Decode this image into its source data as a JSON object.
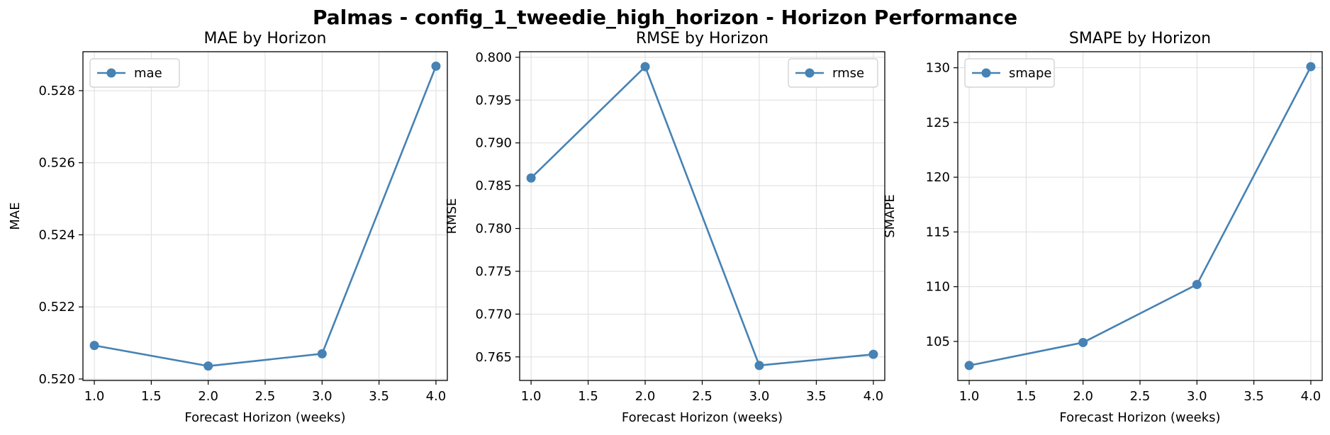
{
  "suptitle": "Palmas - config_1_tweedie_high_horizon - Horizon Performance",
  "colors": {
    "line": "#4682b4",
    "grid": "#dddddd",
    "axis": "#000000",
    "legend_border": "#cccccc"
  },
  "chart_data": [
    {
      "type": "line",
      "title": "MAE by Horizon",
      "xlabel": "Forecast Horizon (weeks)",
      "ylabel": "MAE",
      "x": [
        1.0,
        2.0,
        3.0,
        4.0
      ],
      "series": [
        {
          "name": "mae",
          "values": [
            0.52093,
            0.52036,
            0.5207,
            0.52868
          ]
        }
      ],
      "xlim": [
        0.9,
        4.1
      ],
      "ylim": [
        0.51996,
        0.52908
      ],
      "xticks": [
        "1.0",
        "1.5",
        "2.0",
        "2.5",
        "3.0",
        "3.5",
        "4.0"
      ],
      "yticks": [
        "0.520",
        "0.522",
        "0.524",
        "0.526",
        "0.528"
      ],
      "ytick_values": [
        0.52,
        0.522,
        0.524,
        0.526,
        0.528
      ],
      "legend": "upper left",
      "grid": true
    },
    {
      "type": "line",
      "title": "RMSE by Horizon",
      "xlabel": "Forecast Horizon (weeks)",
      "ylabel": "RMSE",
      "x": [
        1.0,
        2.0,
        3.0,
        4.0
      ],
      "series": [
        {
          "name": "rmse",
          "values": [
            0.7859,
            0.7989,
            0.764,
            0.7653
          ]
        }
      ],
      "xlim": [
        0.9,
        4.1
      ],
      "ylim": [
        0.76225,
        0.80065
      ],
      "xticks": [
        "1.0",
        "1.5",
        "2.0",
        "2.5",
        "3.0",
        "3.5",
        "4.0"
      ],
      "yticks": [
        "0.765",
        "0.770",
        "0.775",
        "0.780",
        "0.785",
        "0.790",
        "0.795",
        "0.800"
      ],
      "ytick_values": [
        0.765,
        0.77,
        0.775,
        0.78,
        0.785,
        0.79,
        0.795,
        0.8
      ],
      "legend": "upper right",
      "grid": true
    },
    {
      "type": "line",
      "title": "SMAPE by Horizon",
      "xlabel": "Forecast Horizon (weeks)",
      "ylabel": "SMAPE",
      "x": [
        1.0,
        2.0,
        3.0,
        4.0
      ],
      "series": [
        {
          "name": "smape",
          "values": [
            102.8,
            104.9,
            110.2,
            130.1
          ]
        }
      ],
      "xlim": [
        0.9,
        4.1
      ],
      "ylim": [
        101.435,
        131.465
      ],
      "xticks": [
        "1.0",
        "1.5",
        "2.0",
        "2.5",
        "3.0",
        "3.5",
        "4.0"
      ],
      "yticks": [
        "105",
        "110",
        "115",
        "120",
        "125",
        "130"
      ],
      "ytick_values": [
        105,
        110,
        115,
        120,
        125,
        130
      ],
      "legend": "upper left",
      "grid": true
    }
  ]
}
